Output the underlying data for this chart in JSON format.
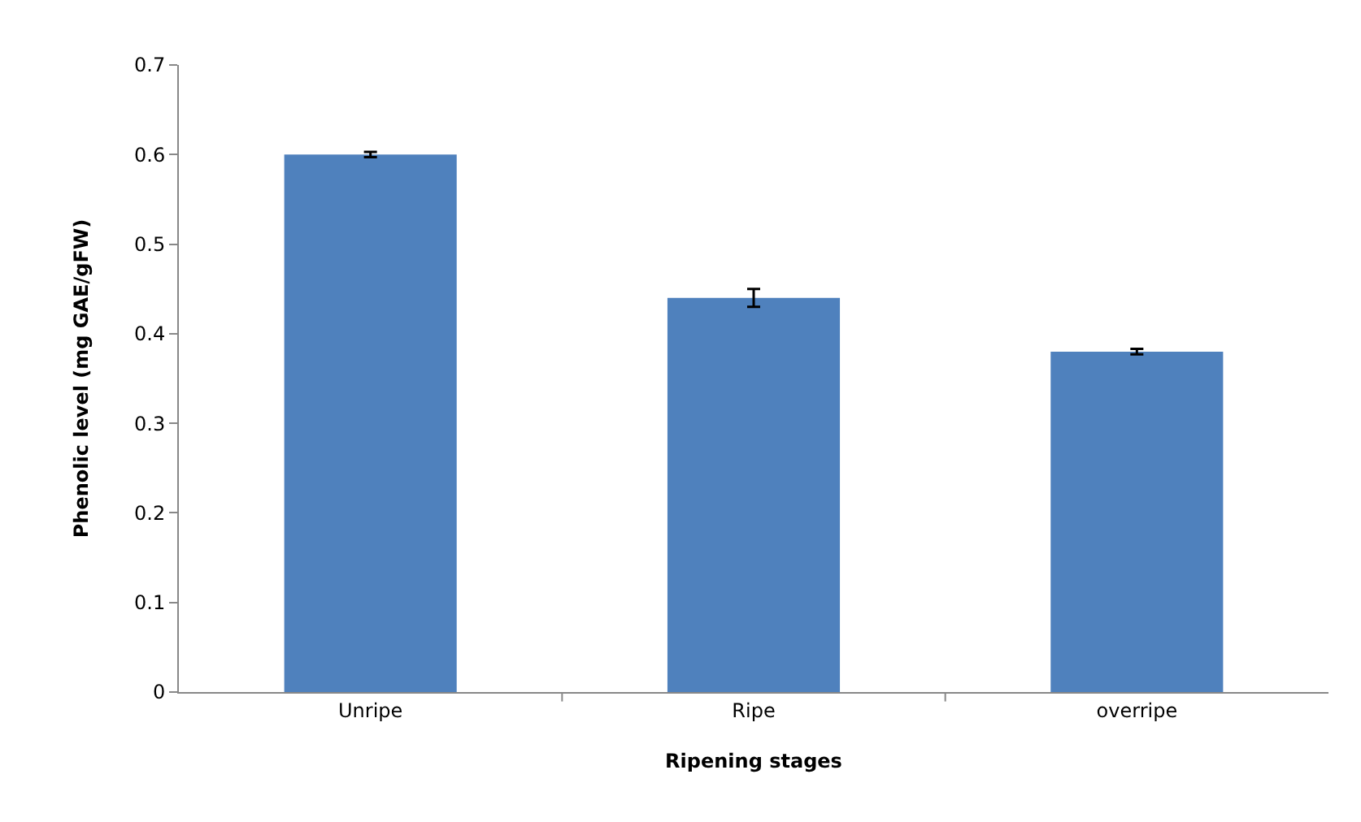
{
  "chart_data": {
    "type": "bar",
    "xlabel": "Ripening stages",
    "ylabel": "Phenolic level (mg GAE/gFW)",
    "categories": [
      "Unripe",
      "Ripe",
      "overripe"
    ],
    "values": [
      0.6,
      0.44,
      0.38
    ],
    "errors": [
      0.003,
      0.01,
      0.003
    ],
    "color": "#4f81bd",
    "ylim": [
      0,
      0.7
    ],
    "yticks": [
      0,
      0.1,
      0.2,
      0.3,
      0.4,
      0.5,
      0.6,
      0.7
    ],
    "grid": false,
    "legend": false
  }
}
